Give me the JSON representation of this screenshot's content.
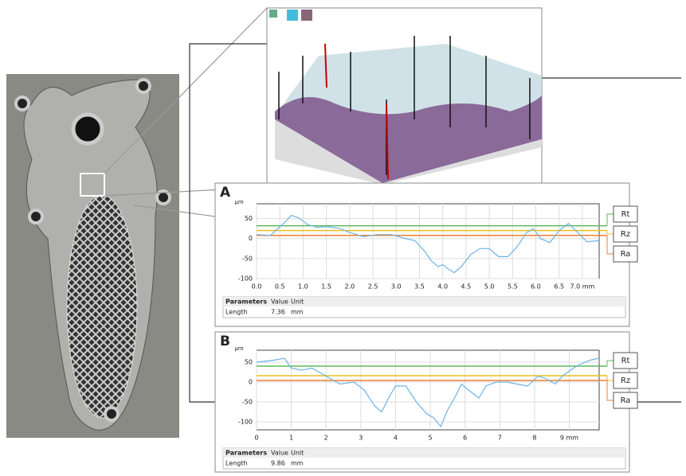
{
  "chart_data": [
    {
      "type": "line",
      "panel": "A",
      "y_label": "µm",
      "x": [
        0,
        0.3,
        0.6,
        0.75,
        0.9,
        1.1,
        1.3,
        1.5,
        1.8,
        2.0,
        2.3,
        2.6,
        2.9,
        3.2,
        3.4,
        3.6,
        3.75,
        3.9,
        4.0,
        4.1,
        4.25,
        4.4,
        4.6,
        4.8,
        5.0,
        5.2,
        5.4,
        5.6,
        5.8,
        5.95,
        6.1,
        6.3,
        6.5,
        6.7,
        6.9,
        7.1,
        7.36
      ],
      "series": [
        {
          "color": "#6cb4e8",
          "values": [
            10,
            8,
            40,
            58,
            52,
            35,
            28,
            30,
            25,
            15,
            5,
            10,
            10,
            0,
            -5,
            -30,
            -55,
            -70,
            -65,
            -75,
            -85,
            -70,
            -40,
            -25,
            -25,
            -45,
            -45,
            -20,
            15,
            25,
            0,
            -10,
            20,
            38,
            15,
            -8,
            -5
          ]
        }
      ],
      "xlim": [
        0,
        7.36
      ],
      "ylim": [
        -100,
        87
      ],
      "xticks": [
        {
          "value": 0,
          "label": "0.0"
        },
        0.5,
        {
          "value": 1,
          "label": "1.0"
        },
        1.5,
        {
          "value": 2,
          "label": "2.0"
        },
        2.5,
        {
          "value": 3,
          "label": "3.0"
        },
        3.5,
        {
          "value": 4,
          "label": "4.0"
        },
        4.5,
        {
          "value": 5,
          "label": "5.0"
        },
        5.5,
        {
          "value": 6,
          "label": "6.0"
        },
        6.5,
        {
          "value": 7,
          "label": "7.0 mm"
        }
      ],
      "yticks": [
        50,
        0,
        -50,
        -100
      ],
      "grid": true,
      "reference_lines": [
        {
          "name": "Rt",
          "value": 32,
          "color": "#5cb85c"
        },
        {
          "name": "Rz",
          "value": 20,
          "color": "#e8c020"
        },
        {
          "name": "Ra",
          "value": 8,
          "color": "#f08030"
        }
      ],
      "table": {
        "header": [
          "Parameters",
          "Value",
          "Unit"
        ],
        "rows": [
          [
            "Length",
            7.36,
            "mm"
          ]
        ]
      }
    },
    {
      "type": "line",
      "panel": "B",
      "y_label": "µm",
      "x": [
        0,
        0.5,
        0.8,
        1.0,
        1.3,
        1.6,
        2.0,
        2.4,
        2.8,
        3.1,
        3.4,
        3.6,
        3.8,
        4.0,
        4.3,
        4.6,
        4.9,
        5.1,
        5.3,
        5.5,
        5.7,
        5.9,
        6.1,
        6.4,
        6.6,
        6.9,
        7.2,
        7.5,
        7.8,
        8.1,
        8.3,
        8.6,
        8.8,
        9.2,
        9.6,
        9.86
      ],
      "series": [
        {
          "color": "#6cb4e8",
          "values": [
            50,
            55,
            60,
            35,
            30,
            35,
            15,
            -5,
            0,
            -20,
            -60,
            -75,
            -40,
            -10,
            -10,
            -50,
            -80,
            -90,
            -112,
            -70,
            -40,
            -5,
            -20,
            -40,
            -10,
            0,
            0,
            -5,
            -10,
            15,
            10,
            -5,
            15,
            40,
            55,
            60
          ]
        }
      ],
      "xlim": [
        0,
        9.86
      ],
      "ylim": [
        -120,
        80
      ],
      "xticks": [
        0,
        1,
        2,
        3,
        4,
        5,
        6,
        7,
        8,
        {
          "value": 9,
          "label": "9 mm"
        }
      ],
      "yticks": [
        50,
        0,
        -50,
        -100
      ],
      "grid": true,
      "reference_lines": [
        {
          "name": "Rt",
          "value": 40,
          "color": "#5cb85c"
        },
        {
          "name": "Rz",
          "value": 16,
          "color": "#e8c020"
        },
        {
          "name": "Ra",
          "value": 4,
          "color": "#f08030"
        }
      ],
      "table": {
        "header": [
          "Parameters",
          "Value",
          "Unit"
        ],
        "rows": [
          [
            "Length",
            9.86,
            "mm"
          ]
        ]
      }
    }
  ]
}
